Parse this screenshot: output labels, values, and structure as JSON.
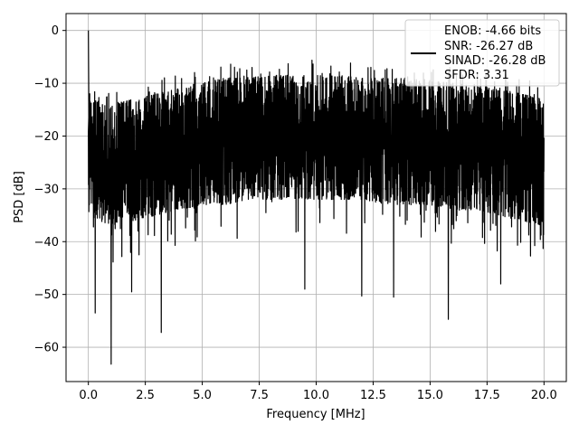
{
  "chart_data": {
    "type": "line",
    "title": "",
    "xlabel": "Frequency [MHz]",
    "ylabel": "PSD [dB]",
    "xlim": [
      -0.98,
      20.98
    ],
    "ylim": [
      -66.5,
      3.2
    ],
    "x_ticks": [
      0.0,
      2.5,
      5.0,
      7.5,
      10.0,
      12.5,
      15.0,
      17.5,
      20.0
    ],
    "x_tick_labels": [
      "0.0",
      "2.5",
      "5.0",
      "7.5",
      "10.0",
      "12.5",
      "15.0",
      "17.5",
      "20.0"
    ],
    "y_ticks": [
      0,
      -10,
      -20,
      -30,
      -40,
      -50,
      -60
    ],
    "y_tick_labels": [
      "0",
      "−10",
      "−20",
      "−30",
      "−40",
      "−50",
      "−60"
    ],
    "grid": true,
    "legend_position": "top-right",
    "series": [
      {
        "color": "#000000",
        "description": "dense noisy spectrum from 0 to 20 MHz",
        "x_range": [
          0,
          20
        ],
        "dc_peak": {
          "x": 0.0,
          "y": 0.0
        },
        "mean_envelope": {
          "x": [
            0,
            1,
            2,
            3,
            4,
            5,
            6,
            7,
            8,
            9,
            10,
            11,
            12,
            13,
            14,
            15,
            16,
            17,
            18,
            19,
            20
          ],
          "y_upper": [
            -13,
            -14,
            -13,
            -12,
            -11,
            -10,
            -9,
            -9,
            -8.5,
            -8.5,
            -8.5,
            -8.5,
            -9,
            -9,
            -9,
            -9.5,
            -10,
            -10.5,
            -11,
            -12,
            -13
          ],
          "y_lower": [
            -35,
            -37,
            -36,
            -35,
            -34,
            -33,
            -33,
            -32,
            -32,
            -32,
            -32,
            -32,
            -32,
            -33,
            -33,
            -33,
            -34,
            -34,
            -35,
            -36,
            -37
          ]
        },
        "notable_dips": [
          {
            "x": 0.3,
            "y": -53.5
          },
          {
            "x": 1.0,
            "y": -63.2
          },
          {
            "x": 1.9,
            "y": -49.5
          },
          {
            "x": 3.2,
            "y": -57.2
          },
          {
            "x": 9.5,
            "y": -49.0
          },
          {
            "x": 12.0,
            "y": -50.3
          },
          {
            "x": 13.4,
            "y": -50.5
          },
          {
            "x": 15.8,
            "y": -54.7
          },
          {
            "x": 18.1,
            "y": -48.0
          }
        ]
      }
    ],
    "legend": {
      "entries": [
        "ENOB: -4.66 bits",
        "SNR: -26.27 dB",
        "SINAD: -26.28 dB",
        "SFDR: 3.31"
      ]
    }
  }
}
